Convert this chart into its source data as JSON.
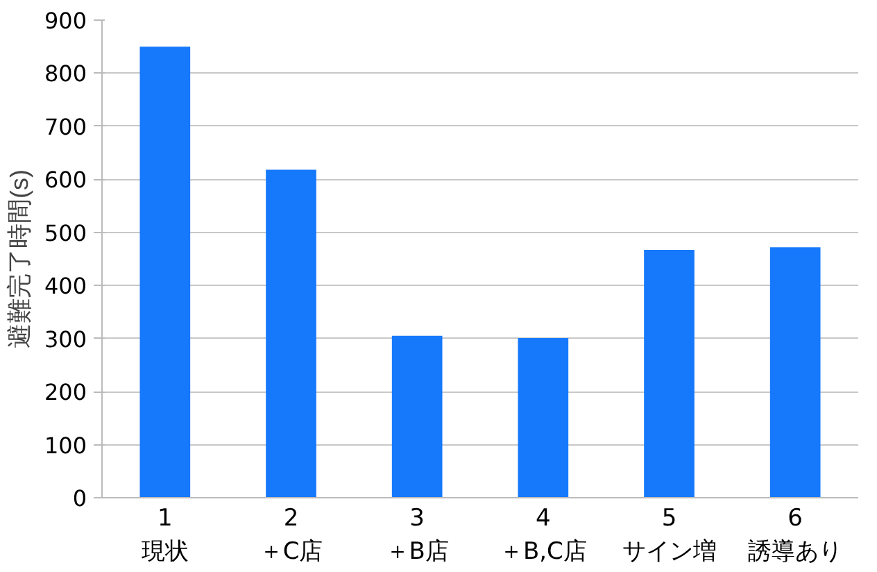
{
  "chart_data": {
    "type": "bar",
    "ylabel": "避難完了時間(s)",
    "categories": [
      "1\n現状",
      "2\n＋C店",
      "3\n＋B店",
      "4\n＋B,C店",
      "5\nサイン増",
      "6\n誘導あり"
    ],
    "values": [
      850,
      618,
      305,
      301,
      467,
      472
    ],
    "color": "#1679fc",
    "ylim": [
      0,
      900
    ],
    "yticks": [
      0,
      100,
      200,
      300,
      400,
      500,
      600,
      700,
      800,
      900
    ],
    "grid": "y"
  }
}
